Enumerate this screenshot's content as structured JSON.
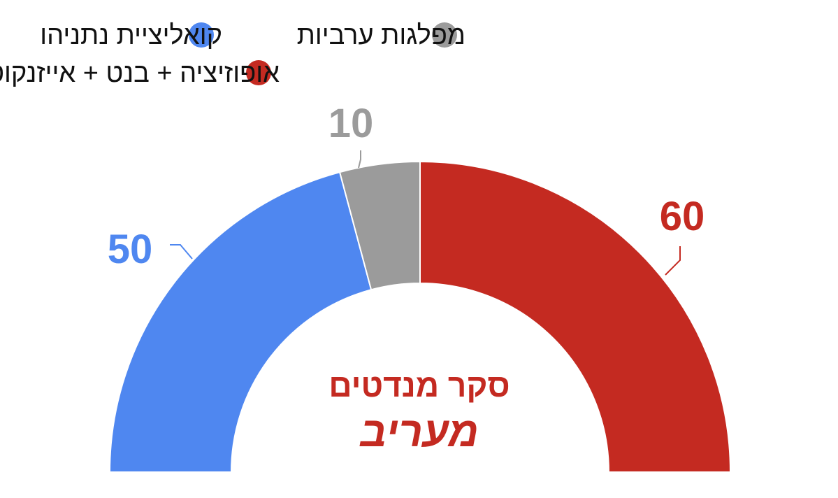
{
  "chart_data": {
    "type": "pie",
    "subtype": "half-donut",
    "series": [
      {
        "name": "קואליציית נתניהו",
        "value": 50,
        "color": "#4f87f0"
      },
      {
        "name": "מפלגות ערביות",
        "value": 10,
        "color": "#9b9b9b"
      },
      {
        "name": "אופוזיציה + בנט + אייזנקוט",
        "value": 60,
        "color": "#c42a21"
      }
    ],
    "total": 120,
    "legend_position": "top",
    "value_labels": [
      "50",
      "10",
      "60"
    ]
  },
  "branding": {
    "title": "סקר מנדטים",
    "logo": "מעריב"
  }
}
